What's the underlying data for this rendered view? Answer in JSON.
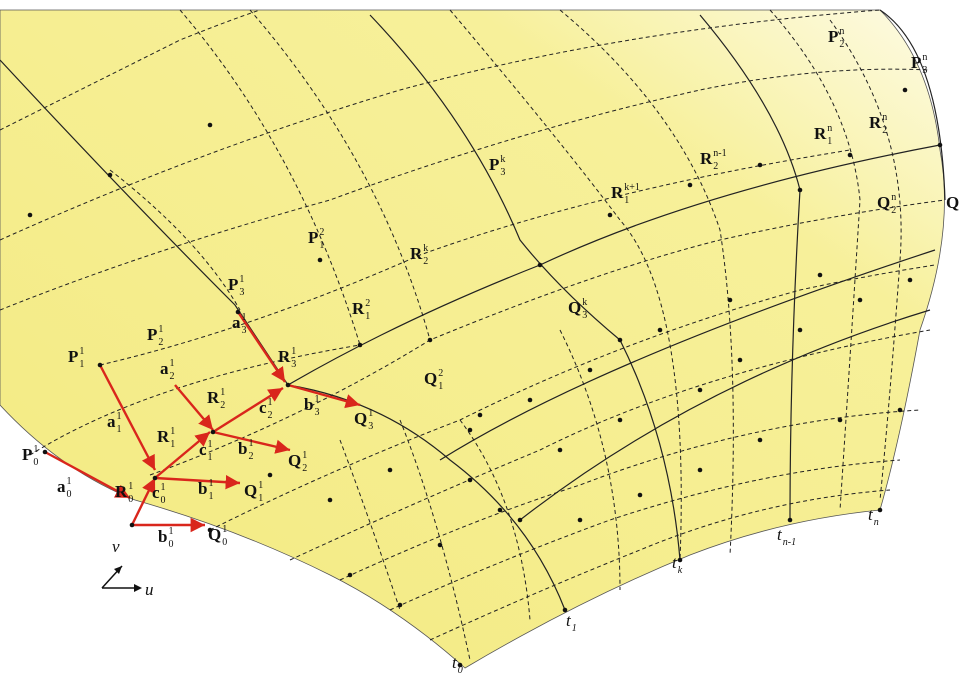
{
  "labels": [
    {
      "base": "P",
      "sub": "0",
      "sup": "1"
    },
    {
      "base": "a",
      "sub": "0",
      "sup": "1"
    },
    {
      "base": "R",
      "sub": "0",
      "sup": "1"
    },
    {
      "base": "b",
      "sub": "0",
      "sup": "1"
    },
    {
      "base": "Q",
      "sub": "0",
      "sup": "1"
    },
    {
      "base": "v"
    },
    {
      "base": "u"
    },
    {
      "base": "P",
      "sub": "1",
      "sup": "1"
    },
    {
      "base": "a",
      "sub": "1",
      "sup": "1"
    },
    {
      "base": "R",
      "sub": "1",
      "sup": "1"
    },
    {
      "base": "c",
      "sub": "0",
      "sup": "1"
    },
    {
      "base": "b",
      "sub": "1",
      "sup": "1"
    },
    {
      "base": "Q",
      "sub": "1",
      "sup": "1"
    },
    {
      "base": "P",
      "sub": "2",
      "sup": "1"
    },
    {
      "base": "a",
      "sub": "2",
      "sup": "1"
    },
    {
      "base": "R",
      "sub": "2",
      "sup": "1"
    },
    {
      "base": "c",
      "sub": "1",
      "sup": "1"
    },
    {
      "base": "b",
      "sub": "2",
      "sup": "1"
    },
    {
      "base": "Q",
      "sub": "2",
      "sup": "1"
    },
    {
      "base": "P",
      "sub": "3",
      "sup": "1"
    },
    {
      "base": "a",
      "sub": "3",
      "sup": "1"
    },
    {
      "base": "R",
      "sub": "3",
      "sup": "1"
    },
    {
      "base": "c",
      "sub": "2",
      "sup": "1"
    },
    {
      "base": "b",
      "sub": "3",
      "sup": "1"
    },
    {
      "base": "Q",
      "sub": "3",
      "sup": "1"
    },
    {
      "base": "P",
      "sub": "1",
      "sup": "2"
    },
    {
      "base": "R",
      "sub": "1",
      "sup": "2"
    },
    {
      "base": "Q",
      "sub": "1",
      "sup": "2"
    },
    {
      "base": "R",
      "sub": "2",
      "sup": "k"
    },
    {
      "base": "Q",
      "sub": "3",
      "sup": "k"
    },
    {
      "base": "P",
      "sub": "3",
      "sup": "k"
    },
    {
      "base": "R",
      "sub": "1",
      "sup": "k+1"
    },
    {
      "base": "R",
      "sub": "2",
      "sup": "n-1"
    },
    {
      "base": "R",
      "sub": "1",
      "sup": "n"
    },
    {
      "base": "R",
      "sub": "2",
      "sup": "n"
    },
    {
      "base": "P",
      "sub": "2",
      "sup": "n"
    },
    {
      "base": "P",
      "sub": "3",
      "sup": "n"
    },
    {
      "base": "Q",
      "sub": "2",
      "sup": "n"
    },
    {
      "base": "Q"
    },
    {
      "base": "t",
      "sub": "0"
    },
    {
      "base": "t",
      "sub": "1"
    },
    {
      "base": "t",
      "sub": "k"
    },
    {
      "base": "t",
      "sub": "n-1"
    },
    {
      "base": "t",
      "sub": "n"
    }
  ]
}
